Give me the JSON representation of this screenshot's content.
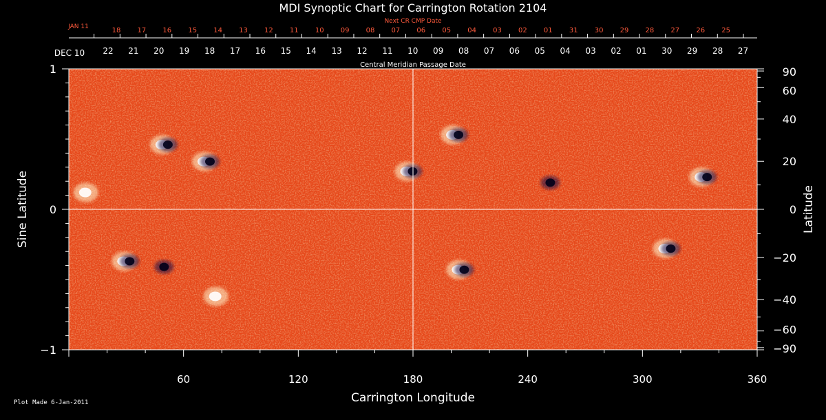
{
  "chart_data": {
    "type": "heatmap",
    "title": "MDI Synoptic Chart for Carrington Rotation 2104",
    "xlabel": "Carrington Longitude",
    "ylabel_left": "Sine Latitude",
    "ylabel_right": "Latitude",
    "xlim": [
      0,
      360
    ],
    "ylim": [
      -1,
      1
    ],
    "x_ticks": [
      "60",
      "120",
      "180",
      "240",
      "300",
      "360"
    ],
    "y_ticks_left": [
      "1",
      "0",
      "−1"
    ],
    "y_ticks_right": [
      "90",
      "60",
      "40",
      "20",
      "0",
      "−20",
      "−40",
      "−60",
      "−90"
    ],
    "top_axis_label": "Central Meridian Passage Date",
    "top_axis_start": "DEC 10",
    "top_axis_dates": [
      "22",
      "21",
      "20",
      "19",
      "18",
      "17",
      "16",
      "15",
      "14",
      "13",
      "12",
      "11",
      "10",
      "09",
      "08",
      "07",
      "06",
      "05",
      "04",
      "03",
      "02",
      "01",
      "30",
      "29",
      "28",
      "27"
    ],
    "next_cr_label": "Next CR CMP Date",
    "next_cr_start": "JAN 11",
    "next_cr_dates": [
      "18",
      "17",
      "16",
      "15",
      "14",
      "13",
      "12",
      "11",
      "10",
      "09",
      "08",
      "07",
      "06",
      "05",
      "04",
      "03",
      "02",
      "01",
      "31",
      "30",
      "29",
      "28",
      "27",
      "26",
      "25"
    ],
    "colors": {
      "background": "#000000",
      "map_base": "#e8481a",
      "positive": "#fff8d0",
      "negative": "#14104a",
      "red_labels": "#ff5a3c"
    },
    "features": [
      {
        "lon": 202,
        "lat_sin": 0.53,
        "polarity": "mixed"
      },
      {
        "lon": 332,
        "lat_sin": 0.23,
        "polarity": "mixed"
      },
      {
        "lon": 178,
        "lat_sin": 0.27,
        "polarity": "mixed"
      },
      {
        "lon": 72,
        "lat_sin": 0.34,
        "polarity": "mixed"
      },
      {
        "lon": 50,
        "lat_sin": 0.46,
        "polarity": "mixed"
      },
      {
        "lon": 10,
        "lat_sin": 0.12,
        "polarity": "positive"
      },
      {
        "lon": 250,
        "lat_sin": 0.19,
        "polarity": "negative"
      },
      {
        "lon": 205,
        "lat_sin": -0.43,
        "polarity": "mixed"
      },
      {
        "lon": 30,
        "lat_sin": -0.37,
        "polarity": "mixed"
      },
      {
        "lon": 48,
        "lat_sin": -0.41,
        "polarity": "negative"
      },
      {
        "lon": 313,
        "lat_sin": -0.28,
        "polarity": "mixed"
      },
      {
        "lon": 78,
        "lat_sin": -0.62,
        "polarity": "positive"
      }
    ],
    "grid": false,
    "legend": "none"
  },
  "footer": {
    "plot_made": "Plot Made  6-Jan-2011"
  }
}
